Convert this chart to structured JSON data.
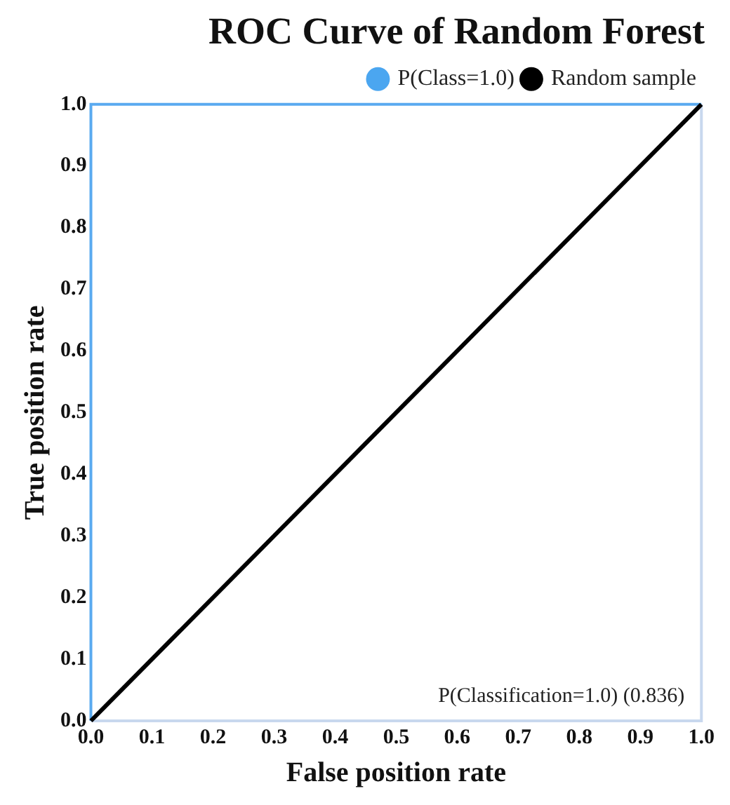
{
  "chart_data": {
    "type": "line",
    "title": "ROC Curve of Random Forest",
    "xlabel": "False position rate",
    "ylabel": "True position rate",
    "series": [
      {
        "name": "P(Class=1.0)",
        "color": "#4ba6f0"
      },
      {
        "name": "Random sample",
        "color": "#000000",
        "x": [
          0,
          1
        ],
        "values": [
          0,
          1
        ]
      }
    ],
    "xlim": [
      0,
      1
    ],
    "ylim": [
      0,
      1
    ],
    "xticks": [
      {
        "value": 0,
        "label": "0.0"
      },
      {
        "value": 0.1,
        "label": "0.1"
      },
      {
        "value": 0.2,
        "label": "0.2"
      },
      {
        "value": 0.3,
        "label": "0.3"
      },
      {
        "value": 0.4,
        "label": "0.4"
      },
      {
        "value": 0.5,
        "label": "0.5"
      },
      {
        "value": 0.6,
        "label": "0.6"
      },
      {
        "value": 0.7,
        "label": "0.7"
      },
      {
        "value": 0.8,
        "label": "0.8"
      },
      {
        "value": 0.9,
        "label": "0.9"
      },
      {
        "value": 1,
        "label": "1.0"
      }
    ],
    "yticks": [
      {
        "value": 0,
        "label": "0.0"
      },
      {
        "value": 0.1,
        "label": "0.1"
      },
      {
        "value": 0.2,
        "label": "0.2"
      },
      {
        "value": 0.3,
        "label": "0.3"
      },
      {
        "value": 0.4,
        "label": "0.4"
      },
      {
        "value": 0.5,
        "label": "0.5"
      },
      {
        "value": 0.6,
        "label": "0.6"
      },
      {
        "value": 0.7,
        "label": "0.7"
      },
      {
        "value": 0.8,
        "label": "0.8"
      },
      {
        "value": 0.9,
        "label": "0.9"
      },
      {
        "value": 1,
        "label": "1.0"
      }
    ],
    "annotations": [
      "P(Classification=1.0) (0.836)"
    ],
    "grid": false,
    "legend": "top right",
    "marker": "none",
    "line_style": "solid"
  }
}
